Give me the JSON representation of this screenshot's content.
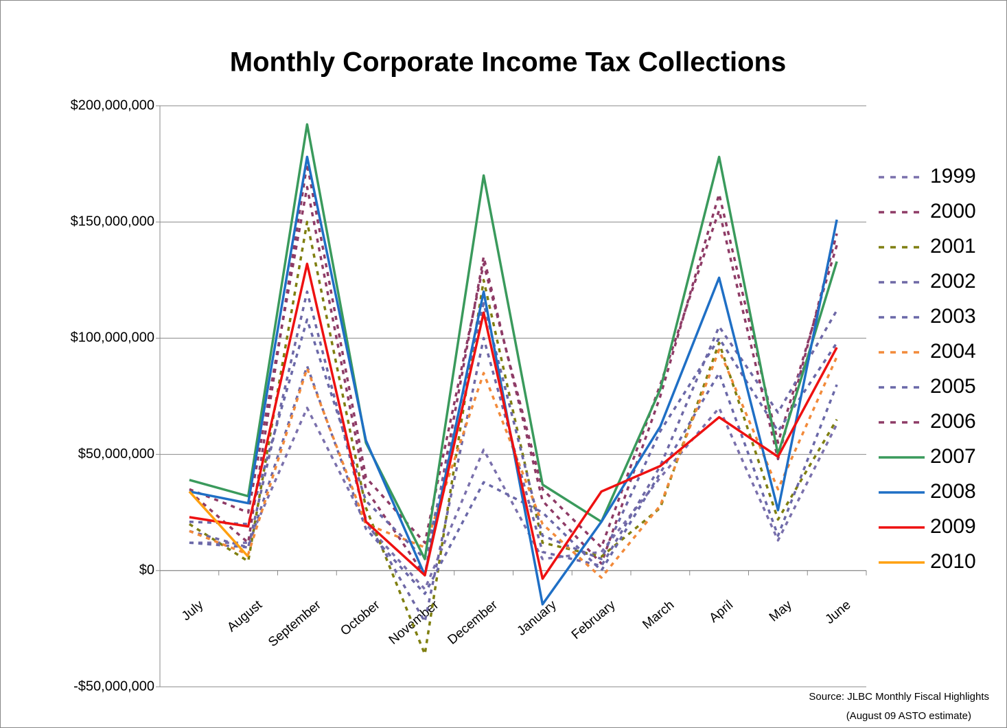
{
  "chart_data": {
    "type": "line",
    "title": "Monthly Corporate Income Tax Collections",
    "categories": [
      "July",
      "August",
      "September",
      "October",
      "November",
      "December",
      "January",
      "February",
      "March",
      "April",
      "May",
      "June"
    ],
    "ylim": [
      -50000000,
      200000000
    ],
    "yticks": [
      {
        "value": -50000000,
        "label": "-$50,000,000"
      },
      {
        "value": 0,
        "label": "$0"
      },
      {
        "value": 50000000,
        "label": "$50,000,000"
      },
      {
        "value": 100000000,
        "label": "$100,000,000"
      },
      {
        "value": 150000000,
        "label": "$150,000,000"
      },
      {
        "value": 200000000,
        "label": "$200,000,000"
      }
    ],
    "grid": true,
    "legend": "right",
    "series": [
      {
        "name": "1999",
        "color": "#7a70ac",
        "style": "dashed",
        "values": [
          12000000,
          12000000,
          70000000,
          20000000,
          -8000000,
          52000000,
          5000000,
          8000000,
          40000000,
          70000000,
          13000000,
          63000000
        ]
      },
      {
        "name": "2000",
        "color": "#8e3b66",
        "style": "dashed",
        "values": [
          35000000,
          25000000,
          165000000,
          35000000,
          -2000000,
          135000000,
          30000000,
          3000000,
          75000000,
          162000000,
          55000000,
          140000000
        ]
      },
      {
        "name": "2001",
        "color": "#7f7f10",
        "style": "dashed",
        "values": [
          20000000,
          4000000,
          150000000,
          27000000,
          -36000000,
          125000000,
          12000000,
          6000000,
          27000000,
          98000000,
          22000000,
          65000000
        ]
      },
      {
        "name": "2002",
        "color": "#6e68a6",
        "style": "dashed",
        "values": [
          17000000,
          10000000,
          120000000,
          22000000,
          -22000000,
          100000000,
          8000000,
          2000000,
          45000000,
          105000000,
          68000000,
          112000000
        ]
      },
      {
        "name": "2003",
        "color": "#6a68a8",
        "style": "dashed",
        "values": [
          12000000,
          10000000,
          88000000,
          18000000,
          -10000000,
          38000000,
          25000000,
          0,
          42000000,
          85000000,
          15000000,
          80000000
        ]
      },
      {
        "name": "2004",
        "color": "#f28a3a",
        "style": "dashed",
        "values": [
          17000000,
          7000000,
          87000000,
          20000000,
          10000000,
          85000000,
          20000000,
          -3000000,
          28000000,
          95000000,
          35000000,
          92000000
        ]
      },
      {
        "name": "2005",
        "color": "#6a68a8",
        "style": "dashed",
        "values": [
          21000000,
          20000000,
          108000000,
          30000000,
          5000000,
          115000000,
          15000000,
          5000000,
          60000000,
          100000000,
          60000000,
          98000000
        ]
      },
      {
        "name": "2006",
        "color": "#8e3b66",
        "style": "dashed",
        "values": [
          34000000,
          12000000,
          175000000,
          40000000,
          12000000,
          132000000,
          35000000,
          10000000,
          80000000,
          155000000,
          48000000,
          145000000
        ]
      },
      {
        "name": "2007",
        "color": "#3a9a5c",
        "style": "solid",
        "values": [
          39000000,
          32000000,
          192000000,
          55000000,
          5000000,
          170000000,
          37000000,
          21000000,
          78000000,
          178000000,
          50000000,
          133000000
        ]
      },
      {
        "name": "2008",
        "color": "#1f6fc5",
        "style": "solid",
        "values": [
          34000000,
          29000000,
          178000000,
          56000000,
          -2000000,
          120000000,
          -14500000,
          21000000,
          62000000,
          126000000,
          26000000,
          151000000
        ]
      },
      {
        "name": "2009",
        "color": "#ee1111",
        "style": "solid",
        "values": [
          23000000,
          19000000,
          132000000,
          21000000,
          -2000000,
          111000000,
          -3500000,
          34000000,
          45000000,
          66000000,
          49000000,
          96000000
        ]
      },
      {
        "name": "2010",
        "color": "#ffa010",
        "style": "solid",
        "values": [
          34000000,
          6000000,
          null,
          null,
          null,
          null,
          null,
          null,
          null,
          null,
          null,
          null
        ]
      }
    ],
    "source": [
      "Source: JLBC Monthly Fiscal Highlights",
      "(August 09 ASTO estimate)"
    ]
  }
}
